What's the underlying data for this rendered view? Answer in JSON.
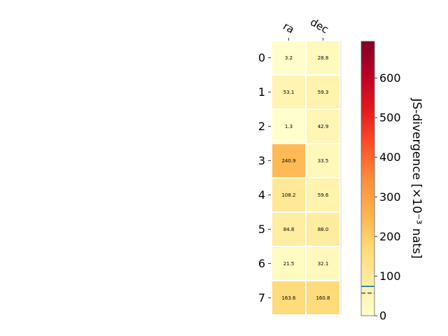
{
  "chart_data": {
    "type": "heatmap",
    "columns": [
      "ra",
      "dec"
    ],
    "rows": [
      "0",
      "1",
      "2",
      "3",
      "4",
      "5",
      "6",
      "7"
    ],
    "values": [
      [
        3.2,
        28.8
      ],
      [
        53.1,
        59.3
      ],
      [
        1.3,
        42.9
      ],
      [
        240.9,
        33.5
      ],
      [
        108.2,
        59.6
      ],
      [
        84.8,
        88.0
      ],
      [
        21.5,
        32.1
      ],
      [
        163.6,
        160.8
      ]
    ],
    "value_labels": [
      [
        "3.2",
        "28.8"
      ],
      [
        "53.1",
        "59.3"
      ],
      [
        "1.3",
        "42.9"
      ],
      [
        "240.9",
        "33.5"
      ],
      [
        "108.2",
        "59.6"
      ],
      [
        "84.8",
        "88.0"
      ],
      [
        "21.5",
        "32.1"
      ],
      [
        "163.6",
        "160.8"
      ]
    ],
    "colorbar": {
      "label": "JS-divergence [×10⁻³ nats]",
      "colormap": "YlOrRd",
      "range": [
        0,
        693
      ],
      "ticks": [
        0,
        100,
        200,
        300,
        400,
        500,
        600
      ],
      "tick_labels": [
        "0",
        "100",
        "200",
        "300",
        "400",
        "500",
        "600"
      ],
      "reference_lines": [
        {
          "value": 74,
          "style": "solid",
          "color": "#1f77b4"
        },
        {
          "value": 57,
          "style": "dashed",
          "color": "#1f77b4"
        }
      ]
    },
    "grid": false
  }
}
